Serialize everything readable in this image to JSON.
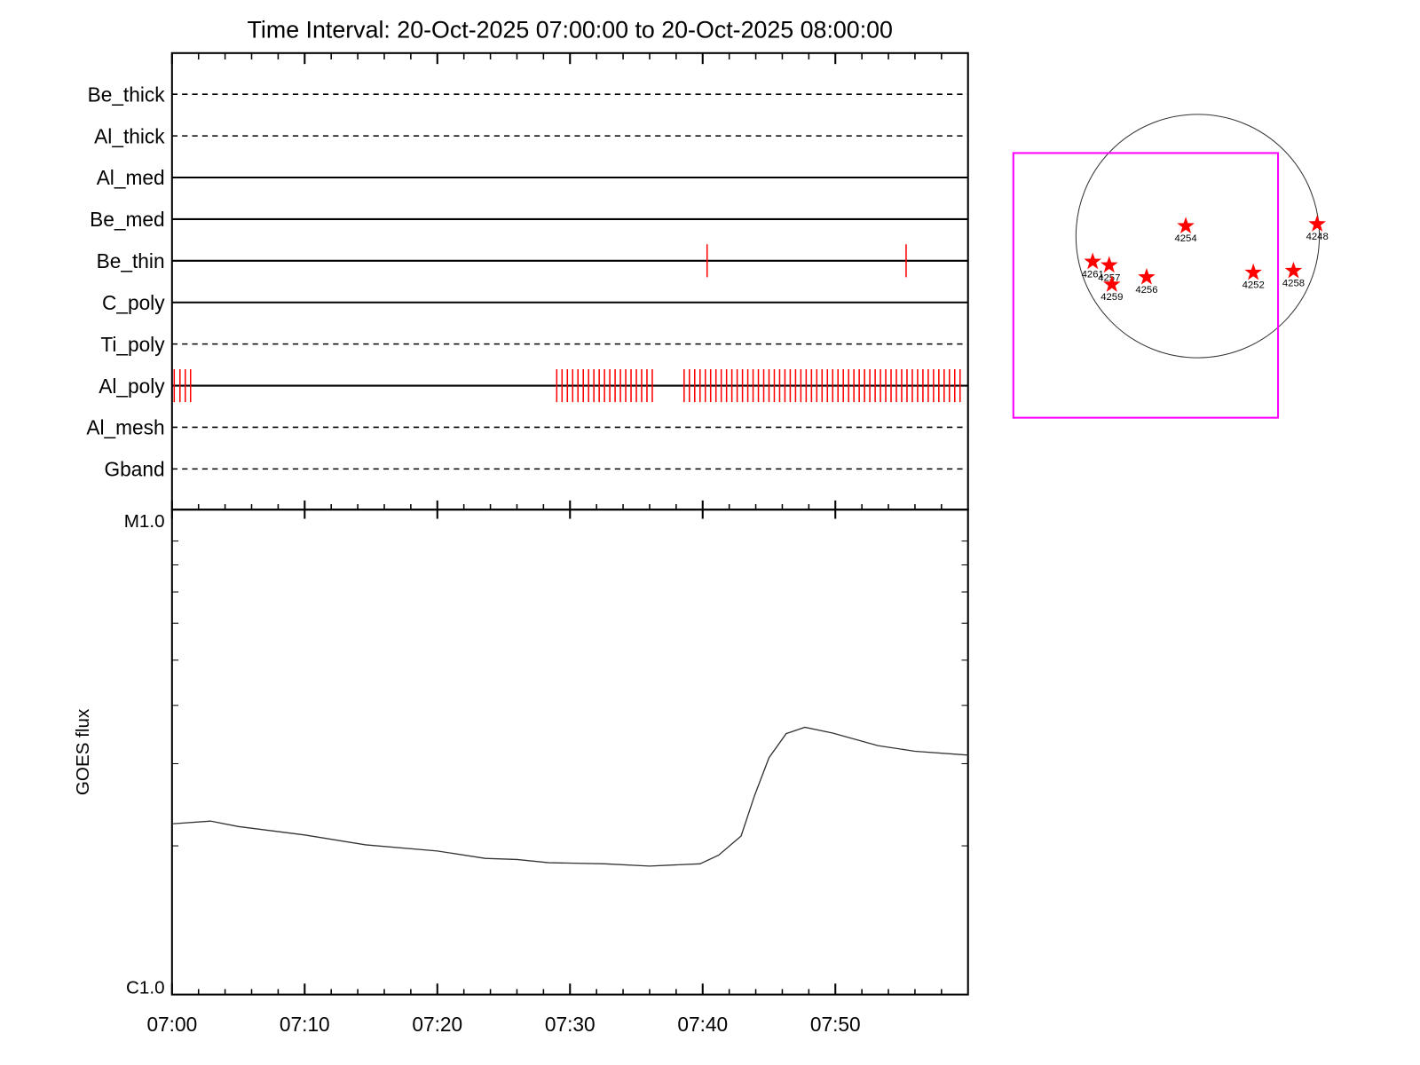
{
  "chart_data": [
    {
      "type": "timeline",
      "title": "Time Interval: 20-Oct-2025 07:00:00 to 20-Oct-2025 08:00:00",
      "rows": [
        {
          "name": "Be_thick",
          "style": "dashed",
          "events": []
        },
        {
          "name": "Al_thick",
          "style": "dashed",
          "events": []
        },
        {
          "name": "Al_med",
          "style": "solid",
          "events": []
        },
        {
          "name": "Be_med",
          "style": "solid",
          "events": []
        },
        {
          "name": "Be_thin",
          "style": "solid",
          "events": [
            "07:40:20",
            "07:55:20"
          ]
        },
        {
          "name": "C_poly",
          "style": "solid",
          "events": []
        },
        {
          "name": "Ti_poly",
          "style": "dashed",
          "events": []
        },
        {
          "name": "Al_poly",
          "style": "solid",
          "events": [
            "07:00:10",
            "07:00:36",
            "07:01:00",
            "07:01:24",
            "07:29:00",
            "07:29:24",
            "07:29:48",
            "07:30:12",
            "07:30:36",
            "07:31:00",
            "07:31:24",
            "07:31:48",
            "07:32:12",
            "07:32:36",
            "07:33:00",
            "07:33:24",
            "07:33:48",
            "07:34:12",
            "07:34:36",
            "07:35:00",
            "07:35:24",
            "07:35:48",
            "07:36:12",
            "07:38:36",
            "07:39:00",
            "07:39:24",
            "07:39:48",
            "07:40:12",
            "07:40:36",
            "07:41:00",
            "07:41:24",
            "07:41:48",
            "07:42:12",
            "07:42:36",
            "07:43:00",
            "07:43:24",
            "07:43:48",
            "07:44:12",
            "07:44:36",
            "07:45:00",
            "07:45:24",
            "07:45:48",
            "07:46:12",
            "07:46:36",
            "07:47:00",
            "07:47:24",
            "07:47:48",
            "07:48:12",
            "07:48:36",
            "07:49:00",
            "07:49:24",
            "07:49:48",
            "07:50:12",
            "07:50:36",
            "07:51:00",
            "07:51:24",
            "07:51:48",
            "07:52:12",
            "07:52:36",
            "07:53:00",
            "07:53:24",
            "07:53:48",
            "07:54:12",
            "07:54:36",
            "07:55:00",
            "07:55:24",
            "07:55:48",
            "07:56:12",
            "07:56:36",
            "07:57:00",
            "07:57:24",
            "07:57:48",
            "07:58:12",
            "07:58:36",
            "07:59:00",
            "07:59:24"
          ]
        },
        {
          "name": "Al_mesh",
          "style": "dashed",
          "events": []
        },
        {
          "name": "Gband",
          "style": "dashed",
          "events": []
        }
      ],
      "event_color": "#ff0000"
    },
    {
      "type": "line",
      "ylabel": "GOES flux",
      "xlim": [
        "07:00",
        "08:00"
      ],
      "xticks": [
        "07:00",
        "07:10",
        "07:20",
        "07:30",
        "07:40",
        "07:50"
      ],
      "minor_xticks": [
        "07:02",
        "07:04",
        "07:06",
        "07:08",
        "07:12",
        "07:14",
        "07:16",
        "07:18",
        "07:22",
        "07:24",
        "07:26",
        "07:28",
        "07:32",
        "07:34",
        "07:36",
        "07:38",
        "07:42",
        "07:44",
        "07:46",
        "07:48",
        "07:52",
        "07:54",
        "07:56",
        "07:58"
      ],
      "log_y": true,
      "ylim": [
        1e-06,
        1e-05
      ],
      "yticks": [
        {
          "value": 1e-06,
          "label": "C1.0"
        },
        {
          "value": 1e-05,
          "label": "M1.0"
        }
      ],
      "minor_yticks": [
        2e-06,
        3e-06,
        4e-06,
        5e-06,
        6e-06,
        7e-06,
        8e-06,
        9e-06
      ],
      "color": "#333333",
      "x": [
        "07:00:00",
        "07:02:54",
        "07:05:00",
        "07:10:00",
        "07:14:36",
        "07:20:00",
        "07:23:36",
        "07:26:00",
        "07:28:24",
        "07:32:36",
        "07:36:00",
        "07:39:48",
        "07:41:12",
        "07:42:54",
        "07:43:54",
        "07:45:00",
        "07:46:18",
        "07:47:42",
        "07:49:48",
        "07:53:12",
        "07:56:00",
        "08:00:00"
      ],
      "values": [
        2.23e-06,
        2.26e-06,
        2.2e-06,
        2.11e-06,
        2.01e-06,
        1.95e-06,
        1.88e-06,
        1.87e-06,
        1.84e-06,
        1.83e-06,
        1.81e-06,
        1.83e-06,
        1.91e-06,
        2.1e-06,
        2.56e-06,
        3.09e-06,
        3.48e-06,
        3.59e-06,
        3.49e-06,
        3.28e-06,
        3.19e-06,
        3.13e-06
      ]
    },
    {
      "type": "map",
      "solar_radius": 960,
      "fov": {
        "xlim": [
          -1454,
          634
        ],
        "ylim": [
          -1433,
          655
        ],
        "color": "#ff00ff"
      },
      "marker_color": "#ff0000",
      "regions": [
        {
          "name": "4254",
          "x": -94,
          "y": 79
        },
        {
          "name": "4248",
          "x": 943,
          "y": 94
        },
        {
          "name": "4261",
          "x": -828,
          "y": -202
        },
        {
          "name": "4257",
          "x": -698,
          "y": -230
        },
        {
          "name": "4259",
          "x": -677,
          "y": -382
        },
        {
          "name": "4256",
          "x": -403,
          "y": -324
        },
        {
          "name": "4252",
          "x": 439,
          "y": -288
        },
        {
          "name": "4258",
          "x": 756,
          "y": -274
        }
      ]
    }
  ]
}
